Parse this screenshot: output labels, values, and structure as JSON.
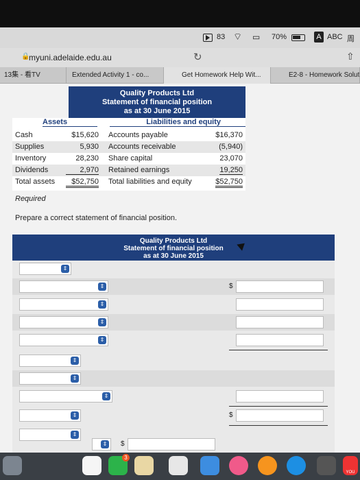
{
  "status_bar": {
    "notification_count": "83",
    "battery_percent": "70%",
    "battery_level": 0.7,
    "input_letter": "A",
    "keyboard": "ABC",
    "lang_glyph": "周"
  },
  "browser": {
    "url": "myuni.adelaide.edu.au",
    "tabs": [
      {
        "label": "13集 - 看TV"
      },
      {
        "label": "Extended Activity 1 - co..."
      },
      {
        "label": "Get Homework Help Wit..."
      },
      {
        "label": "E2-8 - Homework Solutions"
      }
    ]
  },
  "problem": {
    "company": "Quality Products Ltd",
    "statement": "Statement of financial position",
    "date": "as at 30 June 2015",
    "assets_header": "Assets",
    "liab_header": "Liabilities and equity",
    "rows": [
      {
        "a_label": "Cash",
        "a_value": "$15,620",
        "l_label": "Accounts payable",
        "l_value": "$16,370"
      },
      {
        "a_label": "Supplies",
        "a_value": "5,930",
        "l_label": "Accounts receivable",
        "l_value": "(5,940)"
      },
      {
        "a_label": "Inventory",
        "a_value": "28,230",
        "l_label": "Share capital",
        "l_value": "23,070"
      },
      {
        "a_label": "Dividends",
        "a_value": "2,970",
        "l_label": "Retained earnings",
        "l_value": "19,250"
      },
      {
        "a_label": "Total assets",
        "a_value": "$52,750",
        "l_label": "Total liabilities and equity",
        "l_value": "$52,750"
      }
    ]
  },
  "required_label": "Required",
  "prompt": "Prepare a correct statement of financial position.",
  "answer": {
    "company": "Quality Products Ltd",
    "statement": "Statement of financial position",
    "date": "as at 30 June 2015",
    "dollar": "$",
    "dropdown_glyph": "⇕"
  },
  "dock": {
    "app_store_badge": "3",
    "partial_label": "YOU"
  }
}
